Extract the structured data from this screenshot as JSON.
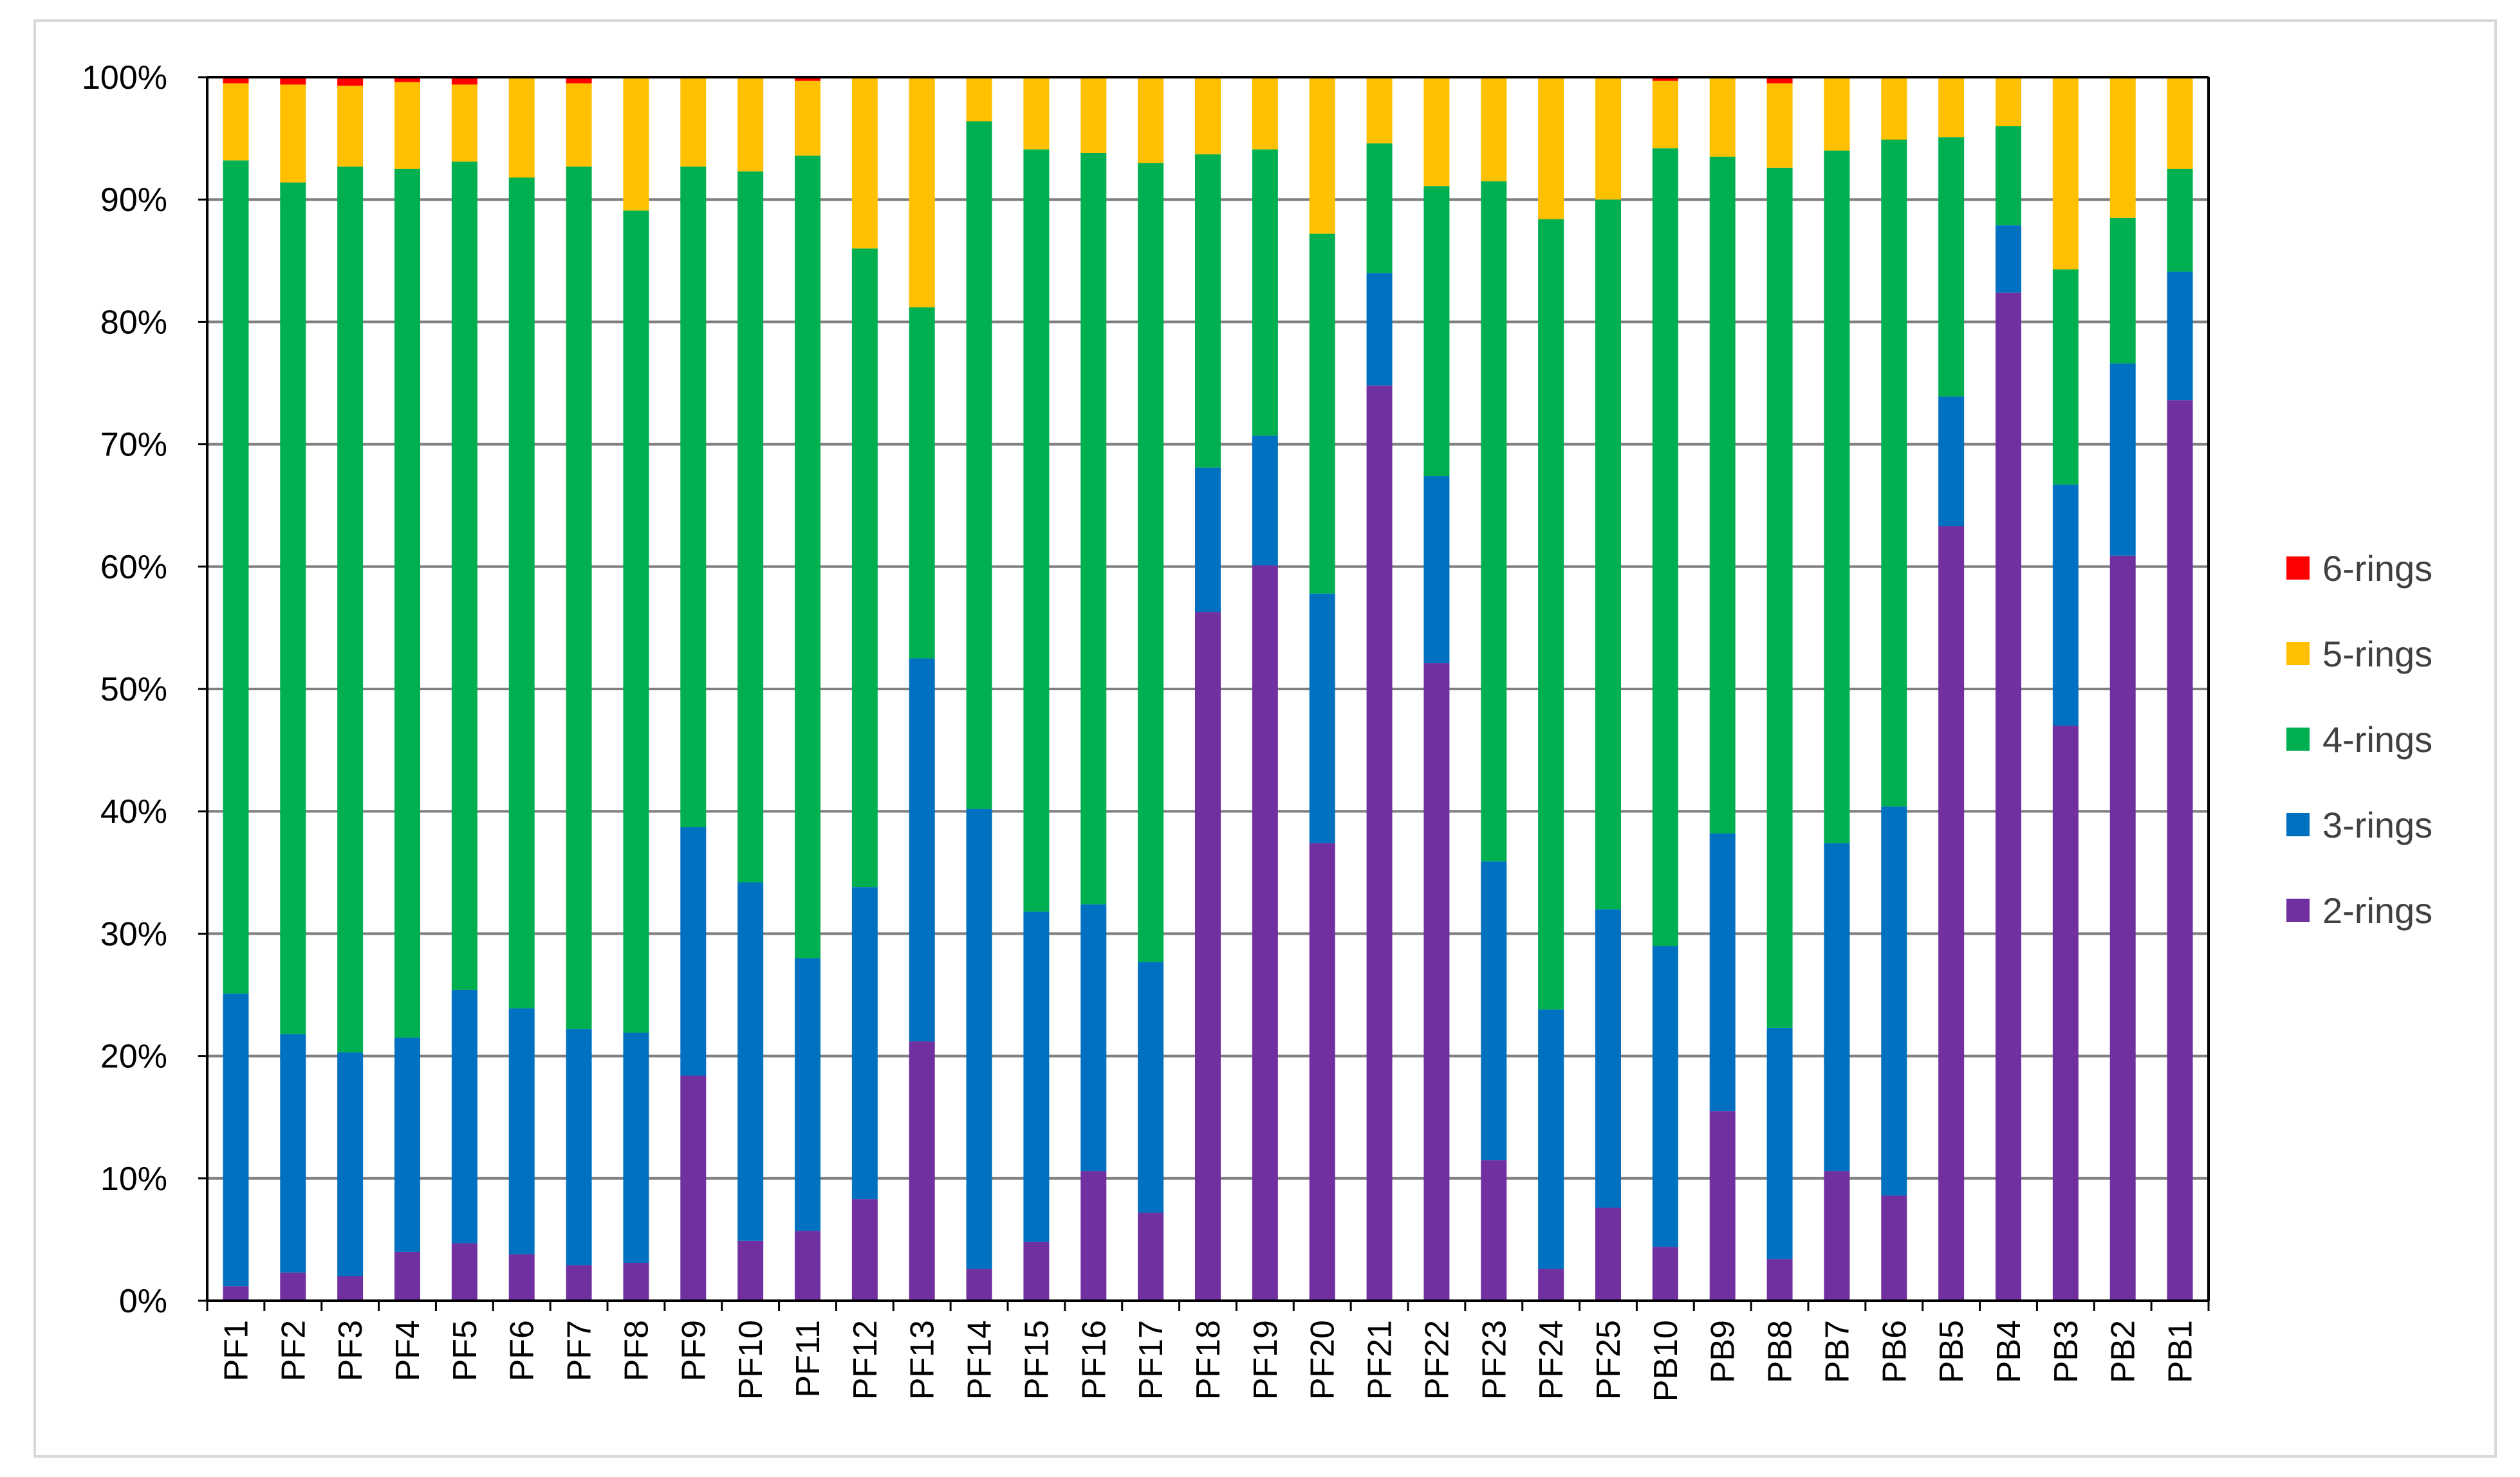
{
  "chart_data": {
    "type": "bar",
    "stacked": true,
    "percent_stacked": true,
    "title": "",
    "xlabel": "",
    "ylabel": "",
    "ylim": [
      0,
      100
    ],
    "y_ticks": [
      "0%",
      "10%",
      "20%",
      "30%",
      "40%",
      "50%",
      "60%",
      "70%",
      "80%",
      "90%",
      "100%"
    ],
    "grid": true,
    "legend_position": "right",
    "categories": [
      "PF1",
      "PF2",
      "PF3",
      "PF4",
      "PF5",
      "PF6",
      "PF7",
      "PF8",
      "PF9",
      "PF10",
      "PF11",
      "PF12",
      "PF13",
      "PF14",
      "PF15",
      "PF16",
      "PF17",
      "PF18",
      "PF19",
      "PF20",
      "PF21",
      "PF22",
      "PF23",
      "PF24",
      "PF25",
      "PB10",
      "PB9",
      "PB8",
      "PB7",
      "PB6",
      "PB5",
      "PB4",
      "PB3",
      "PB2",
      "PB1"
    ],
    "series": [
      {
        "name": "2-rings",
        "color": "#7030a0",
        "values": [
          1.2,
          2.3,
          2.0,
          4.0,
          4.7,
          3.8,
          2.9,
          3.1,
          18.4,
          4.9,
          5.7,
          8.3,
          21.2,
          2.6,
          4.8,
          10.6,
          7.2,
          56.3,
          60.1,
          37.4,
          74.8,
          52.1,
          11.5,
          2.6,
          7.6,
          4.4,
          15.5,
          3.4,
          10.6,
          8.6,
          63.3,
          82.4,
          47.0,
          60.9,
          73.6
        ]
      },
      {
        "name": "3-rings",
        "color": "#0070c0",
        "values": [
          23.9,
          19.5,
          18.3,
          17.5,
          20.7,
          20.1,
          19.3,
          18.8,
          20.3,
          29.3,
          22.3,
          25.5,
          31.3,
          37.6,
          27.0,
          21.8,
          20.5,
          11.8,
          10.6,
          20.4,
          9.2,
          15.3,
          24.4,
          21.2,
          24.4,
          24.6,
          22.7,
          18.9,
          26.8,
          31.8,
          10.6,
          5.5,
          19.7,
          15.7,
          10.5
        ]
      },
      {
        "name": "4-rings",
        "color": "#00b050",
        "values": [
          68.1,
          69.6,
          72.4,
          71.0,
          67.7,
          67.9,
          70.5,
          67.2,
          54.0,
          58.1,
          65.6,
          52.2,
          28.7,
          56.2,
          62.3,
          61.4,
          65.3,
          25.6,
          23.4,
          29.4,
          10.6,
          23.7,
          55.6,
          64.6,
          58.0,
          65.2,
          55.3,
          70.3,
          56.6,
          54.5,
          21.2,
          8.1,
          17.6,
          11.9,
          8.4
        ]
      },
      {
        "name": "5-rings",
        "color": "#ffc000",
        "values": [
          6.3,
          8.0,
          6.6,
          7.1,
          6.3,
          8.2,
          6.8,
          10.9,
          7.3,
          7.7,
          6.1,
          14.0,
          18.8,
          3.6,
          5.8,
          6.2,
          7.0,
          6.3,
          5.9,
          12.8,
          5.4,
          8.9,
          8.5,
          11.6,
          10.0,
          5.5,
          6.5,
          6.9,
          6.0,
          5.1,
          4.9,
          4.0,
          15.7,
          11.5,
          7.5
        ]
      },
      {
        "name": "6-rings",
        "color": "#ff0000",
        "values": [
          0.5,
          0.6,
          0.7,
          0.4,
          0.6,
          0.0,
          0.5,
          0.0,
          0.0,
          0.0,
          0.3,
          0.0,
          0.0,
          0.0,
          0.1,
          0.0,
          0.0,
          0.0,
          0.0,
          0.0,
          0.0,
          0.0,
          0.0,
          0.0,
          0.0,
          0.3,
          0.0,
          0.5,
          0.0,
          0.0,
          0.0,
          0.0,
          0.0,
          0.0,
          0.0
        ]
      }
    ],
    "legend_order": [
      "6-rings",
      "5-rings",
      "4-rings",
      "3-rings",
      "2-rings"
    ]
  }
}
